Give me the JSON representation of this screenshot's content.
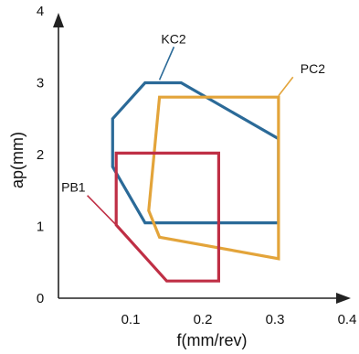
{
  "chart_data": {
    "type": "line",
    "xlabel": "f(mm/rev)",
    "ylabel": "ap(mm)",
    "xlim": [
      0,
      0.4
    ],
    "ylim": [
      0,
      4
    ],
    "xticks": [
      {
        "value": 0.1,
        "label": "0.1"
      },
      {
        "value": 0.2,
        "label": "0.2"
      },
      {
        "value": 0.3,
        "label": "0.3"
      },
      {
        "value": 0.4,
        "label": "0.4"
      }
    ],
    "yticks": [
      {
        "value": 0,
        "label": "0"
      },
      {
        "value": 1,
        "label": "1"
      },
      {
        "value": 2,
        "label": "2"
      },
      {
        "value": 3,
        "label": "3"
      },
      {
        "value": 4,
        "label": "4"
      }
    ],
    "grid": false,
    "series": [
      {
        "name": "KC2",
        "color": "#2b6a98",
        "points": [
          [
            0.075,
            2.5
          ],
          [
            0.12,
            3.0
          ],
          [
            0.17,
            3.0
          ],
          [
            0.305,
            2.22
          ],
          [
            0.305,
            1.05
          ],
          [
            0.12,
            1.05
          ],
          [
            0.075,
            1.83
          ]
        ]
      },
      {
        "name": "PC2",
        "color": "#e3a43a",
        "points": [
          [
            0.14,
            2.8
          ],
          [
            0.305,
            2.8
          ],
          [
            0.305,
            0.55
          ],
          [
            0.14,
            0.85
          ],
          [
            0.125,
            1.22
          ]
        ]
      },
      {
        "name": "PB1",
        "color": "#bf2f45",
        "points": [
          [
            0.08,
            2.02
          ],
          [
            0.222,
            2.02
          ],
          [
            0.222,
            0.24
          ],
          [
            0.15,
            0.24
          ],
          [
            0.08,
            1.02
          ]
        ]
      }
    ],
    "labels": [
      {
        "text": "KC2",
        "color": "#2b6a98",
        "from": [
          0.14,
          3.04
        ],
        "to": [
          0.16,
          3.5
        ]
      },
      {
        "text": "PC2",
        "color": "#e3a43a",
        "from": [
          0.305,
          2.82
        ],
        "to": [
          0.325,
          3.08
        ]
      },
      {
        "text": "PB1",
        "color": "#bf2f45",
        "from": [
          0.08,
          1.02
        ],
        "to": [
          0.04,
          1.43
        ]
      }
    ]
  }
}
